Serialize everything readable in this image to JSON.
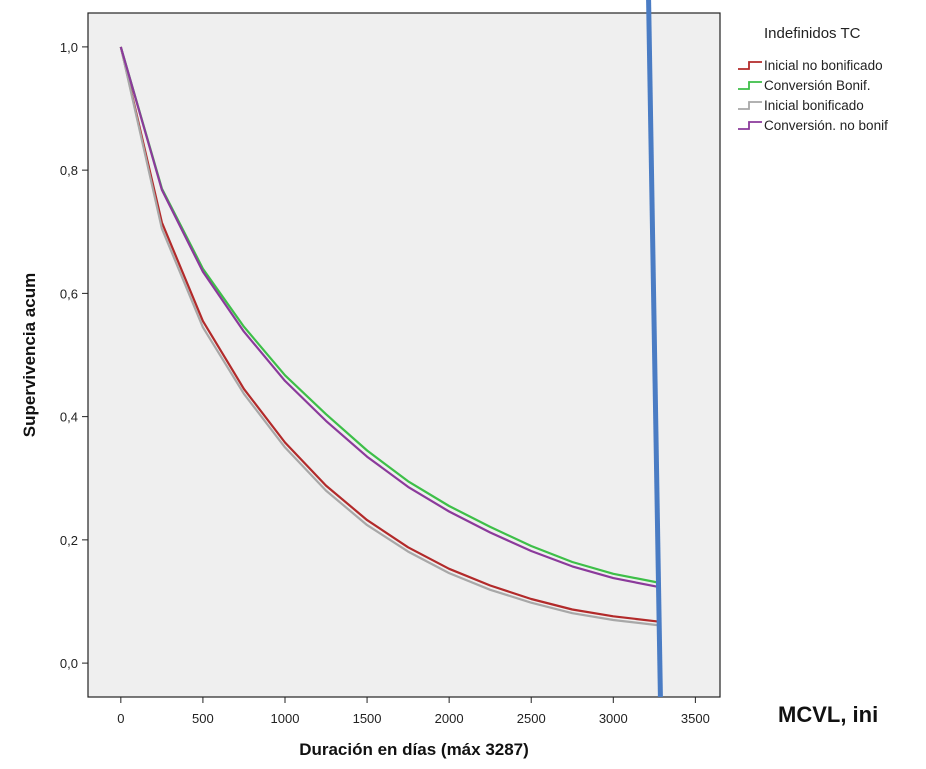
{
  "corner_note": "MCVL, ini",
  "chart_data": {
    "type": "line",
    "xlabel": "Duración en días (máx 3287)",
    "ylabel": "Supervivencia acum",
    "xlim": [
      -200,
      3650
    ],
    "ylim": [
      -0.055,
      1.055
    ],
    "x_ticks": [
      0,
      500,
      1000,
      1500,
      2000,
      2500,
      3000,
      3500
    ],
    "x_tick_labels": [
      "0",
      "500",
      "1000",
      "1500",
      "2000",
      "2500",
      "3000",
      "3500"
    ],
    "y_ticks": [
      0.0,
      0.2,
      0.4,
      0.6,
      0.8,
      1.0
    ],
    "y_tick_labels": [
      "0,0",
      "0,2",
      "0,4",
      "0,6",
      "0,8",
      "1,0"
    ],
    "grid": false,
    "legend": {
      "title": "Indefinidos TC",
      "position": "right"
    },
    "x": [
      0,
      250,
      500,
      750,
      1000,
      1250,
      1500,
      1750,
      2000,
      2250,
      2500,
      2750,
      3000,
      3287
    ],
    "series": [
      {
        "name": "Inicial no bonificado",
        "color": "#b22a2a",
        "values": [
          1.0,
          0.715,
          0.555,
          0.445,
          0.358,
          0.288,
          0.232,
          0.188,
          0.153,
          0.126,
          0.104,
          0.087,
          0.076,
          0.067
        ]
      },
      {
        "name": "Conversión Bonif.",
        "color": "#3dbf48",
        "values": [
          1.0,
          0.77,
          0.64,
          0.546,
          0.467,
          0.404,
          0.345,
          0.295,
          0.255,
          0.221,
          0.19,
          0.164,
          0.145,
          0.13
        ]
      },
      {
        "name": "Inicial bonificado",
        "color": "#a8a8a8",
        "values": [
          1.0,
          0.705,
          0.545,
          0.437,
          0.35,
          0.28,
          0.224,
          0.181,
          0.146,
          0.119,
          0.098,
          0.081,
          0.07,
          0.061
        ]
      },
      {
        "name": "Conversión. no bonif",
        "color": "#8b3a9b",
        "values": [
          1.0,
          0.768,
          0.635,
          0.538,
          0.458,
          0.393,
          0.335,
          0.286,
          0.246,
          0.212,
          0.182,
          0.157,
          0.138,
          0.123
        ]
      }
    ],
    "annotations": [
      {
        "type": "overlay-line",
        "color": "#4a7cc4",
        "x_top": 3215,
        "x_bottom": 3287
      }
    ],
    "background": "#efefef"
  }
}
